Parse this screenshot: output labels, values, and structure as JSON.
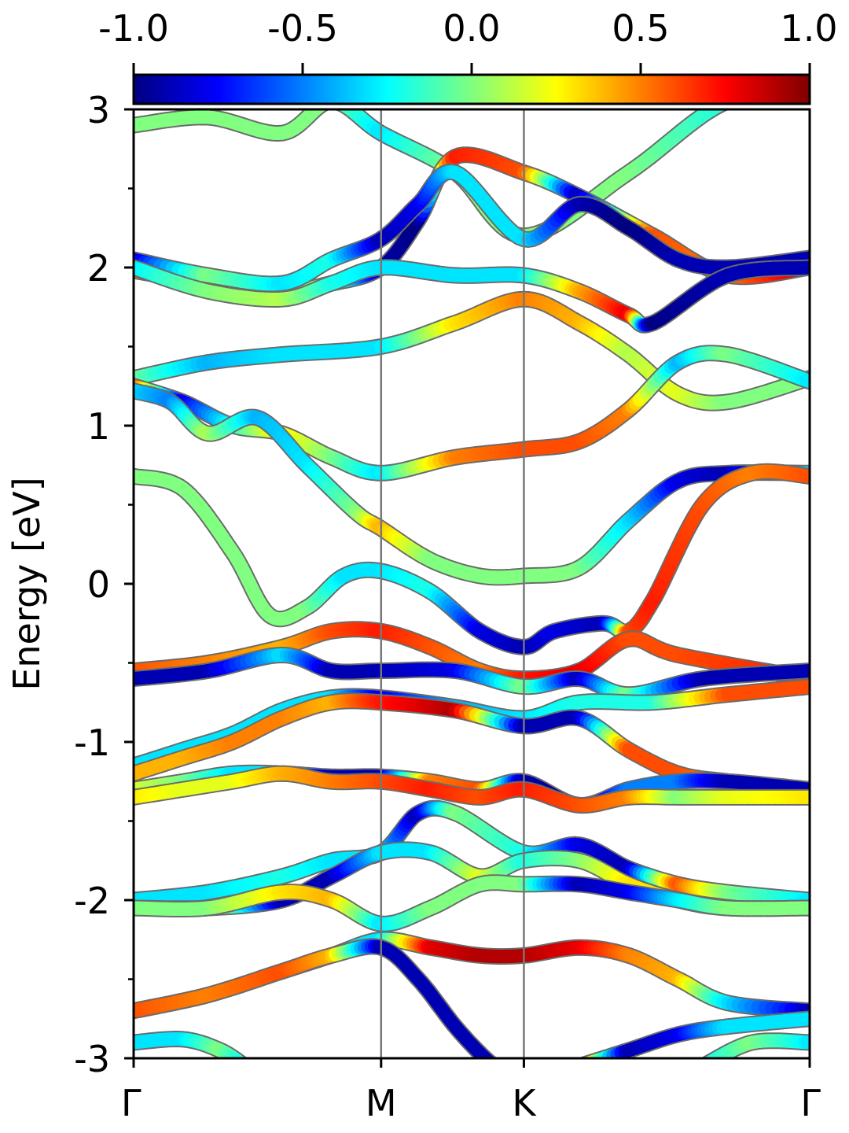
{
  "colorbar": {
    "colormap": "jet",
    "range": [
      -1.0,
      1.0
    ],
    "ticks": [
      "-1.0",
      "-0.5",
      "0.0",
      "0.5",
      "1.0"
    ],
    "tick_values": [
      -1.0,
      -0.5,
      0.0,
      0.5,
      1.0
    ]
  },
  "chart_data": {
    "type": "line",
    "title": "",
    "xlabel": "",
    "ylabel": "Energy [eV]",
    "ylim": [
      -3,
      3
    ],
    "ymajor_ticks": [
      -3,
      -2,
      -1,
      0,
      1,
      2,
      3
    ],
    "ytick_labels": [
      "-3",
      "-2",
      "-1",
      "0",
      "1",
      "2",
      "3"
    ],
    "yminor_ticks": [
      -2.5,
      -1.5,
      -0.5,
      0.5,
      1.5,
      2.5
    ],
    "k_path": {
      "labels": [
        "Γ",
        "M",
        "K",
        "Γ"
      ],
      "positions": [
        0,
        1,
        1.577,
        2.732
      ]
    },
    "xlim": [
      0,
      2.732
    ],
    "grid": false,
    "legend": "colorbar-top",
    "bands": [
      {
        "x": [
          0,
          0.3,
          0.6,
          0.8,
          1,
          1.3,
          1.577,
          2,
          2.4,
          2.732
        ],
        "y": [
          2.9,
          2.95,
          2.85,
          3.05,
          2.85,
          2.6,
          2.2,
          2.6,
          3.05,
          3.05
        ],
        "c": [
          0.0,
          0.0,
          0.0,
          0.0,
          -0.3,
          0.0,
          0.0,
          0.0,
          -0.2,
          0.0
        ]
      },
      {
        "x": [
          0,
          0.3,
          0.6,
          0.8,
          1,
          1.15,
          1.3,
          1.577,
          1.8,
          2.1,
          2.4,
          2.732
        ],
        "y": [
          1.98,
          1.9,
          1.85,
          1.9,
          2.0,
          2.3,
          2.7,
          2.6,
          2.45,
          2.2,
          1.95,
          2.0
        ],
        "c": [
          0.6,
          0.2,
          0.0,
          0.0,
          -0.9,
          -1.0,
          0.7,
          0.6,
          -0.9,
          0.6,
          0.5,
          0.9
        ]
      },
      {
        "x": [
          0,
          0.3,
          0.6,
          0.8,
          1,
          1.15,
          1.3,
          1.577,
          1.8,
          2.0,
          2.2,
          2.4,
          2.732
        ],
        "y": [
          2.05,
          1.95,
          1.9,
          2.05,
          2.18,
          2.4,
          2.6,
          2.18,
          2.4,
          2.25,
          2.05,
          2.0,
          2.06
        ],
        "c": [
          -0.9,
          0.0,
          -0.3,
          -0.2,
          -0.9,
          -0.8,
          -0.3,
          -0.3,
          -0.9,
          -1.0,
          -0.9,
          -0.9,
          -0.9
        ]
      },
      {
        "x": [
          0,
          0.3,
          0.6,
          0.8,
          1,
          1.3,
          1.577,
          1.8,
          2.0,
          2.1,
          2.4,
          2.732
        ],
        "y": [
          2.0,
          1.85,
          1.8,
          1.9,
          2.0,
          1.95,
          1.95,
          1.85,
          1.7,
          1.65,
          1.95,
          2.0
        ],
        "c": [
          -0.3,
          0.0,
          0.1,
          -0.2,
          -0.3,
          -0.3,
          -0.3,
          0.4,
          0.8,
          -1.0,
          -0.9,
          -0.9
        ]
      },
      {
        "x": [
          0,
          0.3,
          0.6,
          1,
          1.3,
          1.577,
          1.8,
          2.0,
          2.2,
          2.4,
          2.732
        ],
        "y": [
          1.3,
          1.4,
          1.45,
          1.5,
          1.65,
          1.8,
          1.65,
          1.45,
          1.2,
          1.15,
          1.3
        ],
        "c": [
          0.0,
          -0.4,
          -0.3,
          -0.3,
          0.3,
          0.5,
          0.4,
          0.1,
          0.2,
          0.0,
          0.0
        ]
      },
      {
        "x": [
          0,
          0.2,
          0.4,
          0.6,
          0.8,
          1,
          1.3,
          1.577,
          1.8,
          2.0,
          2.2,
          2.4,
          2.732
        ],
        "y": [
          1.25,
          1.15,
          1.0,
          0.95,
          0.8,
          0.7,
          0.8,
          0.85,
          0.9,
          1.1,
          1.4,
          1.45,
          1.28
        ],
        "c": [
          0.7,
          -0.8,
          -0.2,
          0.3,
          0.0,
          -0.3,
          0.5,
          0.6,
          0.6,
          0.5,
          -0.4,
          0.0,
          -0.3
        ]
      },
      {
        "x": [
          0,
          0.15,
          0.3,
          0.5,
          0.7,
          0.9,
          1,
          1.2,
          1.4,
          1.577,
          1.8,
          2.0,
          2.2,
          2.4,
          2.732
        ],
        "y": [
          1.22,
          1.15,
          0.95,
          1.05,
          0.75,
          0.45,
          0.35,
          0.15,
          0.05,
          0.05,
          0.1,
          0.4,
          0.65,
          0.7,
          0.7
        ],
        "c": [
          -0.3,
          -0.5,
          0.1,
          -0.4,
          -0.3,
          0.0,
          0.4,
          0.0,
          0.0,
          0.0,
          0.0,
          -0.3,
          -0.8,
          -0.9,
          -0.3
        ]
      },
      {
        "x": [
          0,
          0.2,
          0.4,
          0.55,
          0.7,
          0.85,
          1,
          1.2,
          1.4,
          1.577,
          1.7,
          1.9,
          2.0,
          2.1,
          2.3,
          2.5,
          2.732
        ],
        "y": [
          0.68,
          0.6,
          0.2,
          -0.2,
          -0.15,
          0.05,
          0.08,
          -0.05,
          -0.3,
          -0.4,
          -0.3,
          -0.25,
          -0.3,
          -0.1,
          0.5,
          0.7,
          0.68
        ],
        "c": [
          0.0,
          0.0,
          0.0,
          0.0,
          0.0,
          -0.3,
          -0.3,
          -0.2,
          -0.8,
          -0.9,
          -0.8,
          -0.9,
          0.6,
          0.7,
          0.6,
          0.5,
          0.6
        ]
      },
      {
        "x": [
          0,
          0.3,
          0.6,
          0.8,
          1,
          1.2,
          1.4,
          1.577,
          1.8,
          2.0,
          2.2,
          2.732
        ],
        "y": [
          -0.55,
          -0.5,
          -0.4,
          -0.3,
          -0.3,
          -0.4,
          -0.55,
          -0.6,
          -0.55,
          -0.35,
          -0.45,
          -0.6
        ],
        "c": [
          0.6,
          0.5,
          0.4,
          0.6,
          0.7,
          0.6,
          0.5,
          0.7,
          0.8,
          0.6,
          0.6,
          0.7
        ]
      },
      {
        "x": [
          0,
          0.3,
          0.6,
          0.8,
          1,
          1.3,
          1.577,
          1.8,
          2.0,
          2.3,
          2.732
        ],
        "y": [
          -0.6,
          -0.55,
          -0.45,
          -0.55,
          -0.55,
          -0.55,
          -0.65,
          -0.6,
          -0.7,
          -0.6,
          -0.55
        ],
        "c": [
          -0.9,
          -0.9,
          -0.3,
          -0.9,
          -0.9,
          -0.8,
          0.0,
          -0.9,
          0.0,
          -0.9,
          -0.9
        ]
      },
      {
        "x": [
          0,
          0.2,
          0.4,
          0.6,
          0.8,
          1,
          1.3,
          1.577,
          1.8,
          2.1,
          2.4,
          2.732
        ],
        "y": [
          -1.15,
          -1.05,
          -0.95,
          -0.8,
          -0.72,
          -0.72,
          -0.78,
          -0.85,
          -0.75,
          -0.75,
          -0.7,
          -0.65
        ],
        "c": [
          -0.3,
          -0.3,
          -0.3,
          -0.3,
          -0.3,
          -0.8,
          -0.4,
          -0.3,
          -0.2,
          -0.2,
          0.6,
          0.6
        ]
      },
      {
        "x": [
          0,
          0.2,
          0.4,
          0.6,
          0.8,
          1,
          1.3,
          1.577,
          1.8,
          2.0,
          2.2,
          2.4,
          2.732
        ],
        "y": [
          -1.2,
          -1.1,
          -1.0,
          -0.85,
          -0.75,
          -0.75,
          -0.8,
          -0.9,
          -0.85,
          -1.05,
          -1.2,
          -1.25,
          -1.3
        ],
        "c": [
          0.4,
          0.4,
          0.5,
          0.5,
          0.4,
          0.7,
          0.9,
          -0.9,
          -0.9,
          0.6,
          0.6,
          0.5,
          0.6
        ]
      },
      {
        "x": [
          0,
          0.2,
          0.4,
          0.6,
          0.8,
          1,
          1.2,
          1.4,
          1.577,
          1.8,
          2.0,
          2.2,
          2.4,
          2.732
        ],
        "y": [
          -1.3,
          -1.25,
          -1.2,
          -1.2,
          -1.22,
          -1.22,
          -1.25,
          -1.3,
          -1.25,
          -1.4,
          -1.3,
          -1.25,
          -1.25,
          -1.3
        ],
        "c": [
          0.2,
          0.0,
          -0.3,
          -0.3,
          -0.9,
          -0.9,
          0.5,
          0.6,
          -0.9,
          -1.0,
          -0.5,
          -0.5,
          -0.9,
          -0.9
        ]
      },
      {
        "x": [
          0,
          0.2,
          0.4,
          0.6,
          0.8,
          1,
          1.2,
          1.4,
          1.577,
          1.8,
          2.0,
          2.2,
          2.4,
          2.732
        ],
        "y": [
          -1.35,
          -1.3,
          -1.25,
          -1.2,
          -1.25,
          -1.25,
          -1.3,
          -1.35,
          -1.3,
          -1.4,
          -1.35,
          -1.35,
          -1.35,
          -1.35
        ],
        "c": [
          0.3,
          0.2,
          0.2,
          0.4,
          0.5,
          0.6,
          0.7,
          0.6,
          0.7,
          0.6,
          0.5,
          0.0,
          0.2,
          0.3
        ]
      },
      {
        "x": [
          0,
          0.3,
          0.6,
          0.8,
          1,
          1.15,
          1.3,
          1.577,
          1.8,
          2.0,
          2.2,
          2.4,
          2.732
        ],
        "y": [
          -2.0,
          -1.95,
          -1.85,
          -1.75,
          -1.7,
          -1.45,
          -1.45,
          -1.7,
          -1.65,
          -1.8,
          -1.9,
          -1.95,
          -2.0
        ],
        "c": [
          -0.3,
          -0.3,
          -0.2,
          -0.3,
          -0.3,
          -0.9,
          0.0,
          -0.2,
          -0.8,
          -0.9,
          0.6,
          0.0,
          -0.3
        ]
      },
      {
        "x": [
          0,
          0.3,
          0.6,
          0.8,
          1,
          1.2,
          1.4,
          1.577,
          1.8,
          2.0,
          2.2,
          2.4,
          2.732
        ],
        "y": [
          -2.05,
          -2.05,
          -2.0,
          -1.85,
          -1.7,
          -1.7,
          -1.85,
          -1.75,
          -1.75,
          -1.9,
          -2.0,
          -2.05,
          -2.05
        ],
        "c": [
          0.2,
          0.3,
          -0.9,
          -0.9,
          -0.3,
          -0.3,
          0.2,
          -0.2,
          0.0,
          0.3,
          0.3,
          0.0,
          0.3
        ]
      },
      {
        "x": [
          0,
          0.3,
          0.6,
          0.8,
          1,
          1.2,
          1.4,
          1.577,
          1.8,
          2.0,
          2.2,
          2.4,
          2.732
        ],
        "y": [
          -2.05,
          -2.05,
          -1.95,
          -2.0,
          -2.15,
          -2.05,
          -1.9,
          -1.9,
          -1.9,
          -1.95,
          -2.0,
          -2.05,
          -2.05
        ],
        "c": [
          0.0,
          0.0,
          0.3,
          0.4,
          -0.3,
          0.0,
          0.0,
          0.0,
          -0.9,
          -0.8,
          -0.3,
          0.0,
          0.0
        ]
      },
      {
        "x": [
          0,
          0.3,
          0.6,
          0.8,
          1,
          1.2,
          1.4,
          1.577,
          1.8,
          2.0,
          2.2,
          2.4,
          2.732
        ],
        "y": [
          -2.7,
          -2.6,
          -2.45,
          -2.35,
          -2.25,
          -2.3,
          -2.35,
          -2.35,
          -2.3,
          -2.35,
          -2.5,
          -2.65,
          -2.7
        ],
        "c": [
          -0.9,
          -0.3,
          -0.3,
          -0.3,
          -0.3,
          0.8,
          0.9,
          0.9,
          0.8,
          0.5,
          0.4,
          -0.3,
          -0.9
        ]
      },
      {
        "x": [
          0,
          0.3,
          0.6,
          0.8,
          1,
          1.15,
          1.3,
          1.42,
          1.5
        ],
        "y": [
          -2.7,
          -2.6,
          -2.45,
          -2.35,
          -2.3,
          -2.5,
          -2.8,
          -3.0,
          -3.1
        ],
        "c": [
          0.6,
          0.5,
          0.6,
          0.4,
          -0.9,
          -0.9,
          -0.9,
          -0.9,
          -0.9
        ]
      },
      {
        "x": [
          1.8,
          2.0,
          2.2,
          2.4,
          2.732
        ],
        "y": [
          -3.05,
          -2.95,
          -2.85,
          -2.8,
          -2.75
        ],
        "c": [
          0.8,
          -0.9,
          -0.8,
          -0.3,
          -0.3
        ]
      },
      {
        "x": [
          0,
          0.2,
          0.35,
          0.45
        ],
        "y": [
          -2.9,
          -2.88,
          -2.95,
          -3.05
        ],
        "c": [
          -0.3,
          -0.3,
          0.0,
          -0.3
        ]
      },
      {
        "x": [
          2.3,
          2.5,
          2.732
        ],
        "y": [
          -3.05,
          -2.9,
          -2.9
        ],
        "c": [
          -0.3,
          0.0,
          -0.3
        ]
      }
    ]
  }
}
